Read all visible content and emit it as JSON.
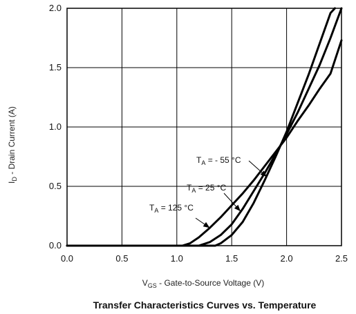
{
  "chart_data": {
    "type": "line",
    "title": "Transfer Characteristics Curves vs. Temperature",
    "xlabel": {
      "prefix": "V",
      "sub": "GS",
      "suffix": " - Gate-to-Source Voltage (V)"
    },
    "ylabel": {
      "prefix": "I",
      "sub": "D",
      "suffix": " - Drain Current (A)"
    },
    "xlim": [
      0.0,
      2.5
    ],
    "ylim": [
      0.0,
      2.0
    ],
    "grid": true,
    "x_ticks": [
      0.0,
      0.5,
      1.0,
      1.5,
      2.0,
      2.5
    ],
    "x_tick_labels": [
      "0.0",
      "0.5",
      "1.0",
      "1.5",
      "2.0",
      "2.5"
    ],
    "y_ticks": [
      0.0,
      0.5,
      1.0,
      1.5,
      2.0
    ],
    "y_tick_labels": [
      "0.0",
      "0.5",
      "1.0",
      "1.5",
      "2.0"
    ],
    "series": [
      {
        "name": "T_A = 125 °C",
        "x": [
          0.0,
          1.05,
          1.12,
          1.2,
          1.3,
          1.4,
          1.5,
          1.6,
          1.7,
          1.8,
          1.9,
          2.0,
          2.1,
          2.2,
          2.3,
          2.4,
          2.5
        ],
        "y": [
          0.0,
          0.0,
          0.02,
          0.07,
          0.15,
          0.24,
          0.34,
          0.44,
          0.55,
          0.67,
          0.79,
          0.91,
          1.05,
          1.18,
          1.32,
          1.45,
          1.73
        ]
      },
      {
        "name": "T_A = 25 °C",
        "x": [
          0.0,
          1.2,
          1.3,
          1.4,
          1.5,
          1.6,
          1.7,
          1.8,
          1.9,
          2.0,
          2.1,
          2.2,
          2.3,
          2.4,
          2.5
        ],
        "y": [
          0.0,
          0.0,
          0.03,
          0.09,
          0.18,
          0.31,
          0.46,
          0.61,
          0.77,
          0.94,
          1.12,
          1.32,
          1.52,
          1.75,
          2.0
        ]
      },
      {
        "name": "T_A = - 55 °C",
        "x": [
          0.0,
          1.35,
          1.4,
          1.5,
          1.6,
          1.7,
          1.8,
          1.9,
          2.0,
          2.1,
          2.2,
          2.3,
          2.4,
          2.44
        ],
        "y": [
          0.0,
          0.0,
          0.02,
          0.09,
          0.2,
          0.36,
          0.55,
          0.75,
          0.96,
          1.2,
          1.44,
          1.7,
          1.96,
          2.0
        ]
      }
    ],
    "annotations": [
      {
        "prefix": "T",
        "sub": "A",
        "suffix": " = - 55 °C",
        "arrow_to": {
          "x": 1.82,
          "y": 0.58
        }
      },
      {
        "prefix": "T",
        "sub": "A",
        "suffix": " = 25 °C",
        "arrow_to": {
          "x": 1.58,
          "y": 0.29
        }
      },
      {
        "prefix": "T",
        "sub": "A",
        "suffix": " = 125 °C",
        "arrow_to": {
          "x": 1.3,
          "y": 0.15
        }
      }
    ]
  }
}
